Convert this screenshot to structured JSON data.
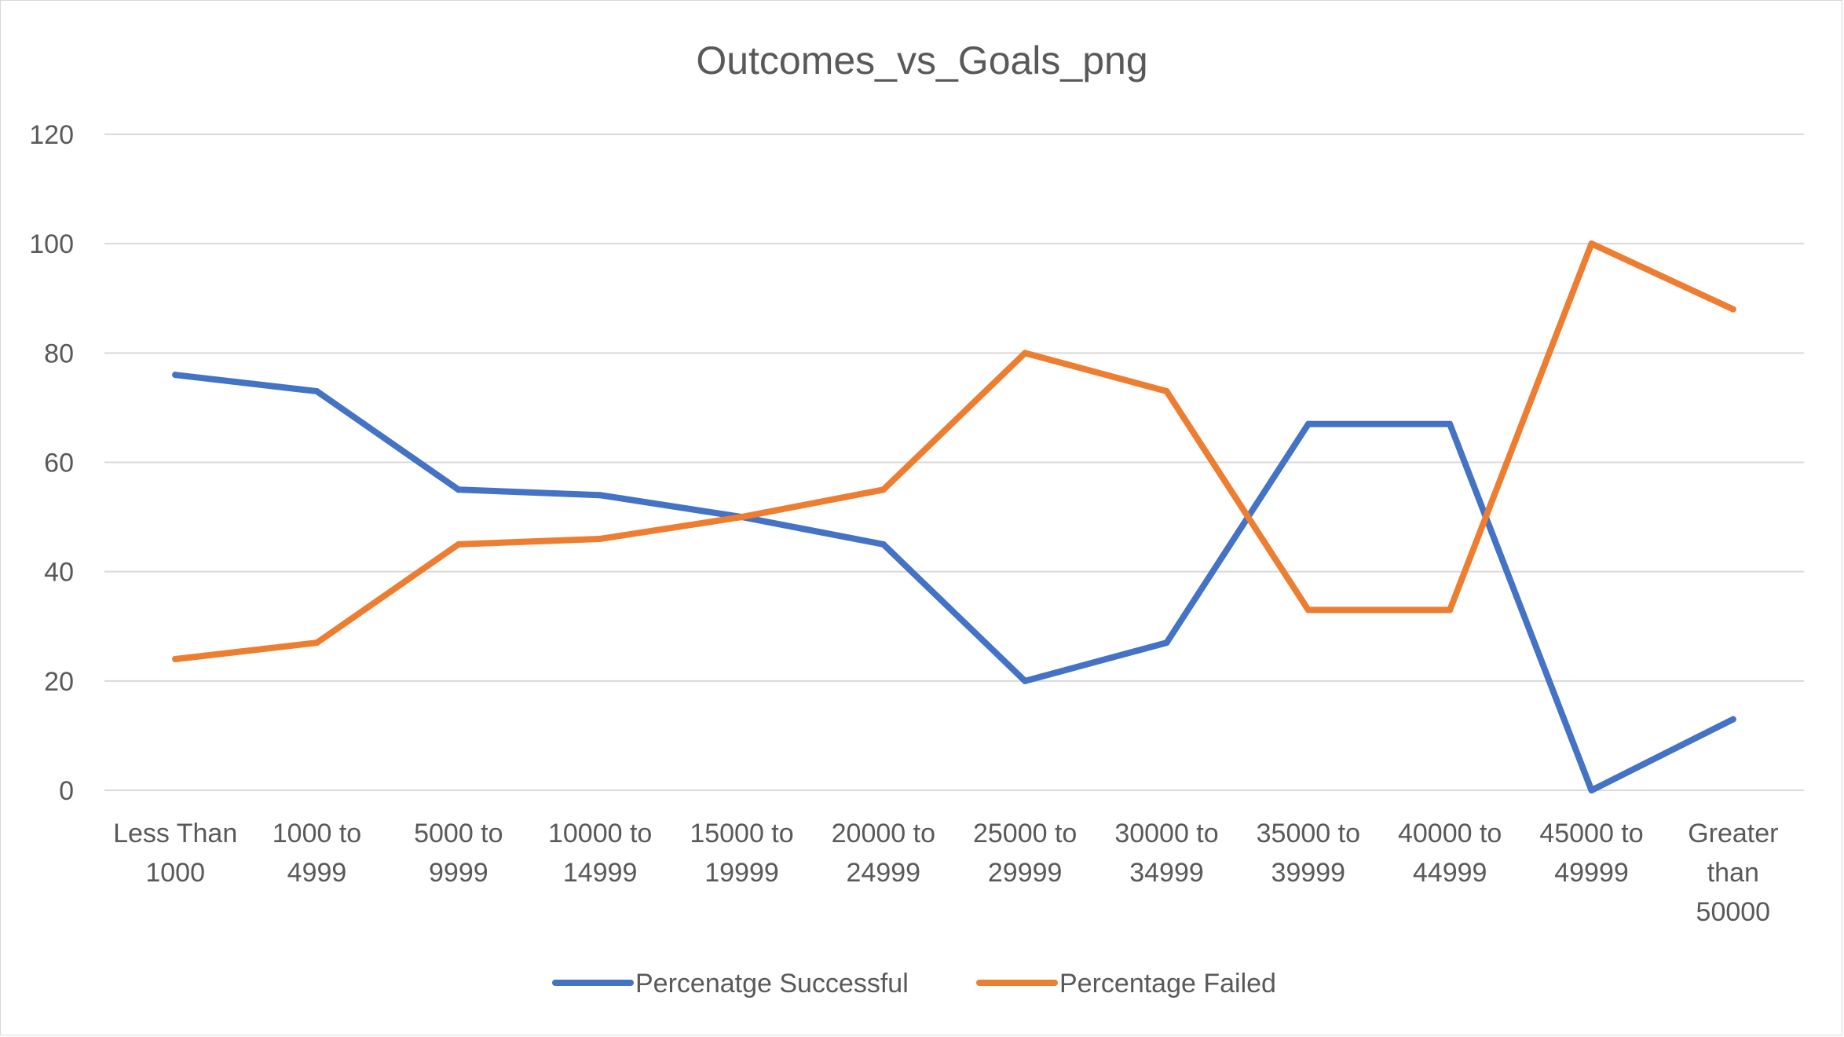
{
  "chart_data": {
    "type": "line",
    "title": "Outcomes_vs_Goals_png",
    "xlabel": "",
    "ylabel": "",
    "categories": [
      [
        "Less Than",
        "1000"
      ],
      [
        "1000 to",
        "4999"
      ],
      [
        "5000 to",
        "9999"
      ],
      [
        "10000 to",
        "14999"
      ],
      [
        "15000 to",
        "19999"
      ],
      [
        "20000 to",
        "24999"
      ],
      [
        "25000 to",
        "29999"
      ],
      [
        "30000 to",
        "34999"
      ],
      [
        "35000 to",
        "39999"
      ],
      [
        "40000 to",
        "44999"
      ],
      [
        "45000 to",
        "49999"
      ],
      [
        "Greater",
        "than",
        "50000"
      ]
    ],
    "ylim": [
      0,
      120
    ],
    "yticks": [
      0,
      20,
      40,
      60,
      80,
      100,
      120
    ],
    "grid": true,
    "legend": "bottom",
    "series": [
      {
        "name": "Percenatge Successful",
        "color": "#4472C4",
        "values": [
          76,
          73,
          55,
          54,
          50,
          45,
          20,
          27,
          67,
          67,
          0,
          13
        ]
      },
      {
        "name": "Percentage Failed",
        "color": "#ED7D31",
        "values": [
          24,
          27,
          45,
          46,
          50,
          55,
          80,
          73,
          33,
          33,
          100,
          88
        ]
      }
    ]
  }
}
